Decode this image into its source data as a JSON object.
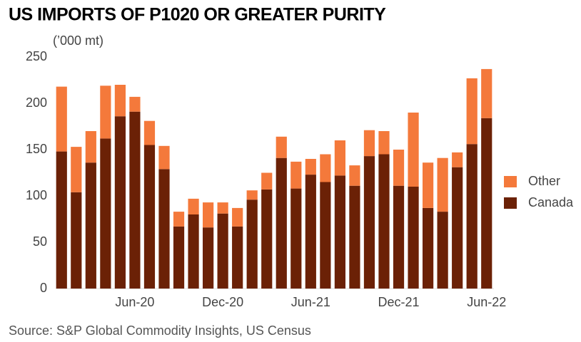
{
  "chart_data": {
    "type": "stacked-bar",
    "title": "US IMPORTS OF P1020 OR GREATER PURITY",
    "y_label": "(’000 mt)",
    "source": "Source: S&P Global Commodity Insights, US Census",
    "categories": [
      null,
      null,
      null,
      null,
      null,
      "Jun-20",
      null,
      null,
      null,
      null,
      null,
      "Dec-20",
      null,
      null,
      null,
      null,
      null,
      "Jun-21",
      null,
      null,
      null,
      null,
      null,
      "Dec-21",
      null,
      null,
      null,
      null,
      null,
      "Jun-22"
    ],
    "series": [
      {
        "name": "Canada",
        "color": "#6b2106",
        "values": [
          148,
          104,
          136,
          162,
          186,
          191,
          155,
          129,
          67,
          80,
          66,
          81,
          67,
          96,
          107,
          141,
          108,
          123,
          115,
          122,
          111,
          143,
          145,
          111,
          110,
          87,
          83,
          131,
          156,
          184
        ]
      },
      {
        "name": "Other",
        "color": "#f4793b",
        "values": [
          70,
          49,
          34,
          57,
          34,
          16,
          26,
          25,
          16,
          17,
          27,
          12,
          20,
          10,
          18,
          23,
          29,
          17,
          30,
          38,
          22,
          28,
          25,
          39,
          80,
          49,
          58,
          16,
          71,
          53
        ]
      }
    ],
    "ylim": [
      0,
      250
    ],
    "yticks": [
      0,
      50,
      100,
      150,
      200,
      250
    ],
    "grid": false,
    "legend": "right"
  }
}
